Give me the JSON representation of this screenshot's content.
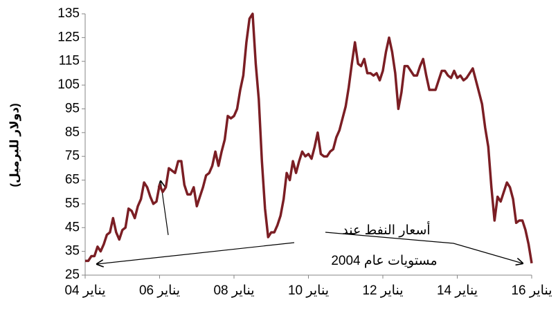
{
  "chart_data": {
    "type": "line",
    "y_label": "(دولار للبرميل)",
    "annotation": [
      "أسعار النفط عند",
      "مستويات عام 2004"
    ],
    "categories": [
      "يناير 04",
      null,
      null,
      null,
      null,
      null,
      null,
      null,
      null,
      null,
      null,
      null,
      null,
      null,
      null,
      null,
      null,
      null,
      null,
      null,
      null,
      null,
      null,
      null,
      "يناير 06",
      null,
      null,
      null,
      null,
      null,
      null,
      null,
      null,
      null,
      null,
      null,
      null,
      null,
      null,
      null,
      null,
      null,
      null,
      null,
      null,
      null,
      null,
      null,
      "يناير 08",
      null,
      null,
      null,
      null,
      null,
      null,
      null,
      null,
      null,
      null,
      null,
      null,
      null,
      null,
      null,
      null,
      null,
      null,
      null,
      null,
      null,
      null,
      null,
      "يناير 10",
      null,
      null,
      null,
      null,
      null,
      null,
      null,
      null,
      null,
      null,
      null,
      null,
      null,
      null,
      null,
      null,
      null,
      null,
      null,
      null,
      null,
      null,
      null,
      "يناير 12",
      null,
      null,
      null,
      null,
      null,
      null,
      null,
      null,
      null,
      null,
      null,
      null,
      null,
      null,
      null,
      null,
      null,
      null,
      null,
      null,
      null,
      null,
      null,
      "يناير 14",
      null,
      null,
      null,
      null,
      null,
      null,
      null,
      null,
      null,
      null,
      null,
      null,
      null,
      null,
      null,
      null,
      null,
      null,
      null,
      null,
      null,
      null,
      null,
      "يناير 16"
    ],
    "series": [
      {
        "color": "#7b1e24",
        "values": [
          31,
          31,
          33,
          33,
          37,
          35,
          38,
          42,
          43,
          49,
          43,
          40,
          44,
          45,
          53,
          52,
          49,
          54,
          57,
          64,
          62,
          58,
          55,
          56,
          63,
          60,
          62,
          70,
          69,
          68,
          73,
          73,
          63,
          59,
          59,
          62,
          54,
          58,
          62,
          67,
          68,
          71,
          77,
          71,
          77,
          82,
          92,
          91,
          92,
          95,
          103,
          109,
          123,
          133,
          135,
          114,
          99,
          73,
          53,
          41,
          43,
          43,
          46,
          50,
          57,
          68,
          65,
          73,
          68,
          73,
          77,
          75,
          76,
          74,
          79,
          85,
          76,
          75,
          75,
          77,
          78,
          83,
          86,
          91,
          96,
          104,
          114,
          123,
          114,
          113,
          116,
          110,
          110,
          109,
          110,
          107,
          111,
          119,
          125,
          119,
          110,
          95,
          102,
          113,
          113,
          111,
          109,
          109,
          113,
          116,
          109,
          103,
          103,
          103,
          107,
          111,
          111,
          109,
          108,
          111,
          108,
          109,
          107,
          108,
          110,
          112,
          107,
          102,
          97,
          87,
          79,
          62,
          48,
          58,
          56,
          60,
          64,
          62,
          57,
          47,
          48,
          48,
          44,
          38,
          30
        ]
      }
    ],
    "ylim": [
      25,
      135
    ],
    "yticks": [
      25,
      35,
      45,
      55,
      65,
      75,
      85,
      95,
      105,
      115,
      125,
      135
    ]
  }
}
